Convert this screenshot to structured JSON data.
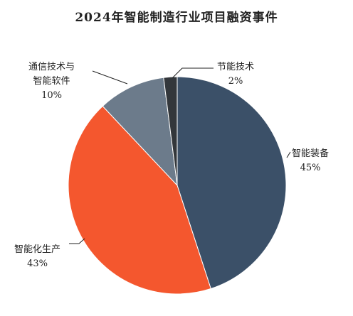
{
  "chart_data": {
    "type": "pie",
    "title": "2024年智能制造行业项目融资事件",
    "slices": [
      {
        "label_lines": [
          "智能装备"
        ],
        "value": 45,
        "value_label": "45%",
        "color": "#3B5068"
      },
      {
        "label_lines": [
          "智能化生产"
        ],
        "value": 43,
        "value_label": "43%",
        "color": "#F4572E"
      },
      {
        "label_lines": [
          "通信技术与",
          "智能软件"
        ],
        "value": 10,
        "value_label": "10%",
        "color": "#6C7B8B"
      },
      {
        "label_lines": [
          "节能技术"
        ],
        "value": 2,
        "value_label": "2%",
        "color": "#33373B"
      }
    ],
    "start": "top",
    "direction": "clockwise",
    "legend": "none"
  }
}
